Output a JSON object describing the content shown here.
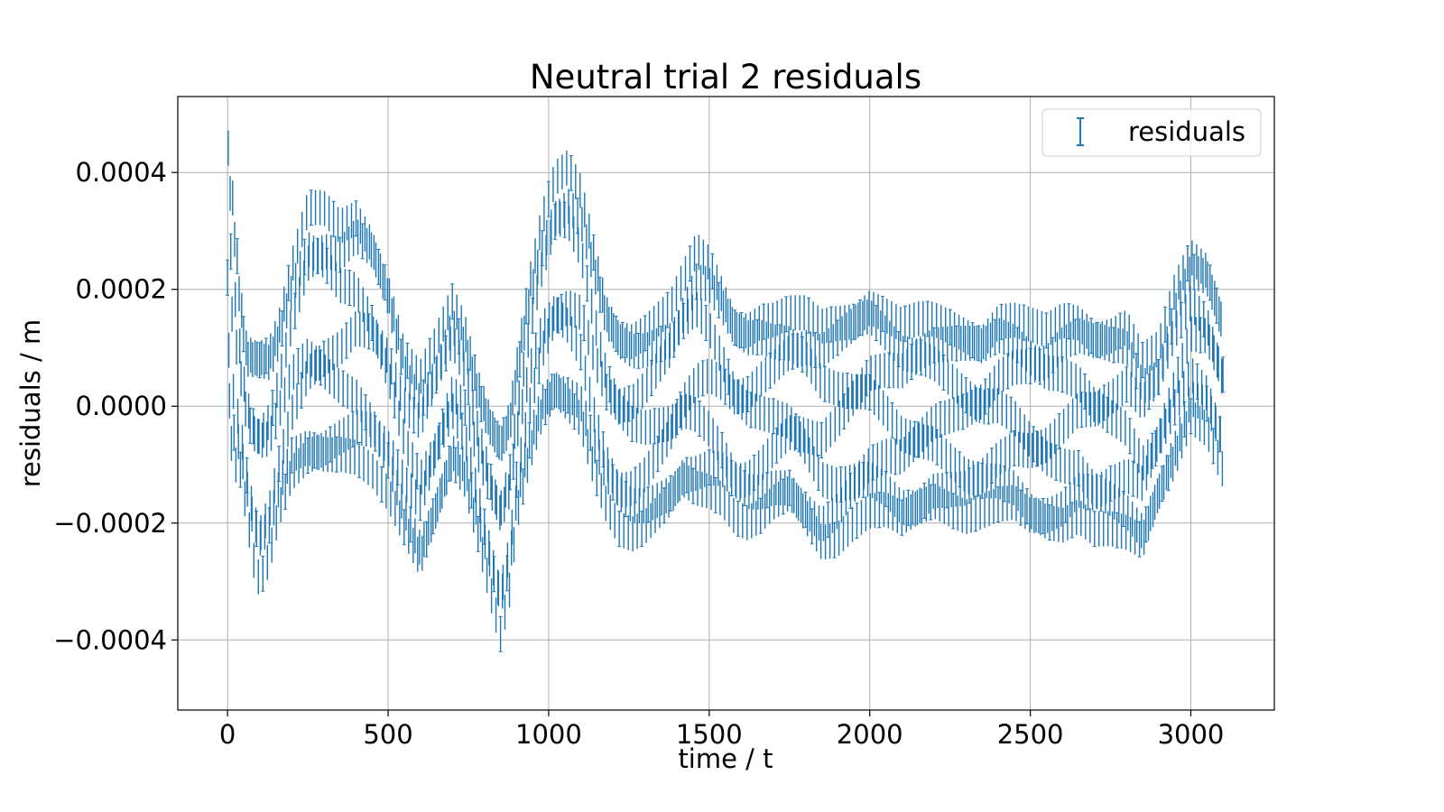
{
  "chart_data": {
    "type": "scatter",
    "title": "Neutral trial 2 residuals",
    "xlabel": "time / t",
    "ylabel": "residuals / m",
    "xlim": [
      -155,
      3260
    ],
    "ylim": [
      -0.00052,
      0.00053
    ],
    "xticks": [
      0,
      500,
      1000,
      1500,
      2000,
      2500,
      3000
    ],
    "xtick_labels": [
      "0",
      "500",
      "1000",
      "1500",
      "2000",
      "2500",
      "3000"
    ],
    "yticks": [
      -0.0004,
      -0.0002,
      0.0,
      0.0002,
      0.0004
    ],
    "ytick_labels": [
      "−0.0004",
      "−0.0002",
      "0.0000",
      "0.0002",
      "0.0004"
    ],
    "grid": true,
    "legend": {
      "position": "top-right",
      "entries": [
        "residuals"
      ]
    },
    "color": "#1f77b4",
    "series": [
      {
        "name": "residuals",
        "style": "errorbar",
        "x": [
          0,
          20,
          40,
          60,
          80,
          100,
          130,
          160,
          200,
          250,
          300,
          350,
          400,
          450,
          500,
          550,
          600,
          650,
          700,
          740,
          780,
          820,
          850,
          880,
          900,
          940,
          980,
          1020,
          1060,
          1100,
          1140,
          1180,
          1220,
          1260,
          1300,
          1340,
          1380,
          1420,
          1460,
          1500,
          1540,
          1580,
          1620,
          1660,
          1700,
          1750,
          1800,
          1850,
          1900,
          1950,
          2000,
          2050,
          2100,
          2150,
          2200,
          2250,
          2300,
          2350,
          2400,
          2450,
          2500,
          2550,
          2600,
          2650,
          2700,
          2750,
          2800,
          2850,
          2900,
          2950,
          3000,
          3050,
          3100
        ],
        "center": [
          0.00022,
          0.00012,
          4e-05,
          -4e-05,
          -8e-05,
          -0.0001,
          -8e-05,
          -2e-05,
          6e-05,
          0.00012,
          0.00012,
          0.00011,
          0.00012,
          9e-05,
          3e-05,
          -6e-05,
          -0.00011,
          -4e-05,
          4e-05,
          0.0,
          -9e-05,
          -0.00017,
          -0.00022,
          -0.00016,
          -6e-05,
          6e-05,
          0.00015,
          0.0002,
          0.0002,
          0.00017,
          8e-05,
          0.0,
          -4e-05,
          -5e-05,
          -4e-05,
          -2e-05,
          0.0,
          4e-05,
          6e-05,
          5e-05,
          2e-05,
          -2e-05,
          -3e-05,
          -2e-05,
          -1e-05,
          0.0,
          -2e-05,
          -5e-05,
          -4e-05,
          -2e-05,
          0.0,
          -1e-05,
          -3e-05,
          -2e-05,
          -1e-05,
          -2e-05,
          -3e-05,
          -3e-05,
          -1e-05,
          -1e-05,
          -3e-05,
          -4e-05,
          -3e-05,
          -2e-05,
          -4e-05,
          -4e-05,
          -4e-05,
          -8e-05,
          -3e-05,
          5e-05,
          0.00012,
          0.0001,
          2e-05
        ],
        "amplitude": [
          0.00024,
          0.00022,
          0.00015,
          0.00014,
          0.00018,
          0.0002,
          0.00018,
          0.00016,
          0.00018,
          0.00022,
          0.00022,
          0.0002,
          0.00021,
          0.0002,
          0.00018,
          0.00015,
          0.00016,
          0.00015,
          0.00014,
          0.00013,
          0.00013,
          0.00015,
          0.00017,
          0.00015,
          0.00013,
          0.00015,
          0.00017,
          0.00019,
          0.00021,
          0.0002,
          0.00019,
          0.00017,
          0.00017,
          0.00017,
          0.00017,
          0.00017,
          0.00017,
          0.00018,
          0.00021,
          0.0002,
          0.00018,
          0.00017,
          0.00017,
          0.00017,
          0.00016,
          0.00016,
          0.00018,
          0.00019,
          0.00019,
          0.00018,
          0.00018,
          0.00017,
          0.00017,
          0.00017,
          0.00016,
          0.00016,
          0.00016,
          0.00015,
          0.00016,
          0.00016,
          0.00017,
          0.00017,
          0.00018,
          0.00017,
          0.00017,
          0.00017,
          0.00018,
          0.00016,
          0.00013,
          0.00015,
          0.00014,
          0.00014,
          0.00013
        ],
        "error": 3e-05
      }
    ]
  }
}
